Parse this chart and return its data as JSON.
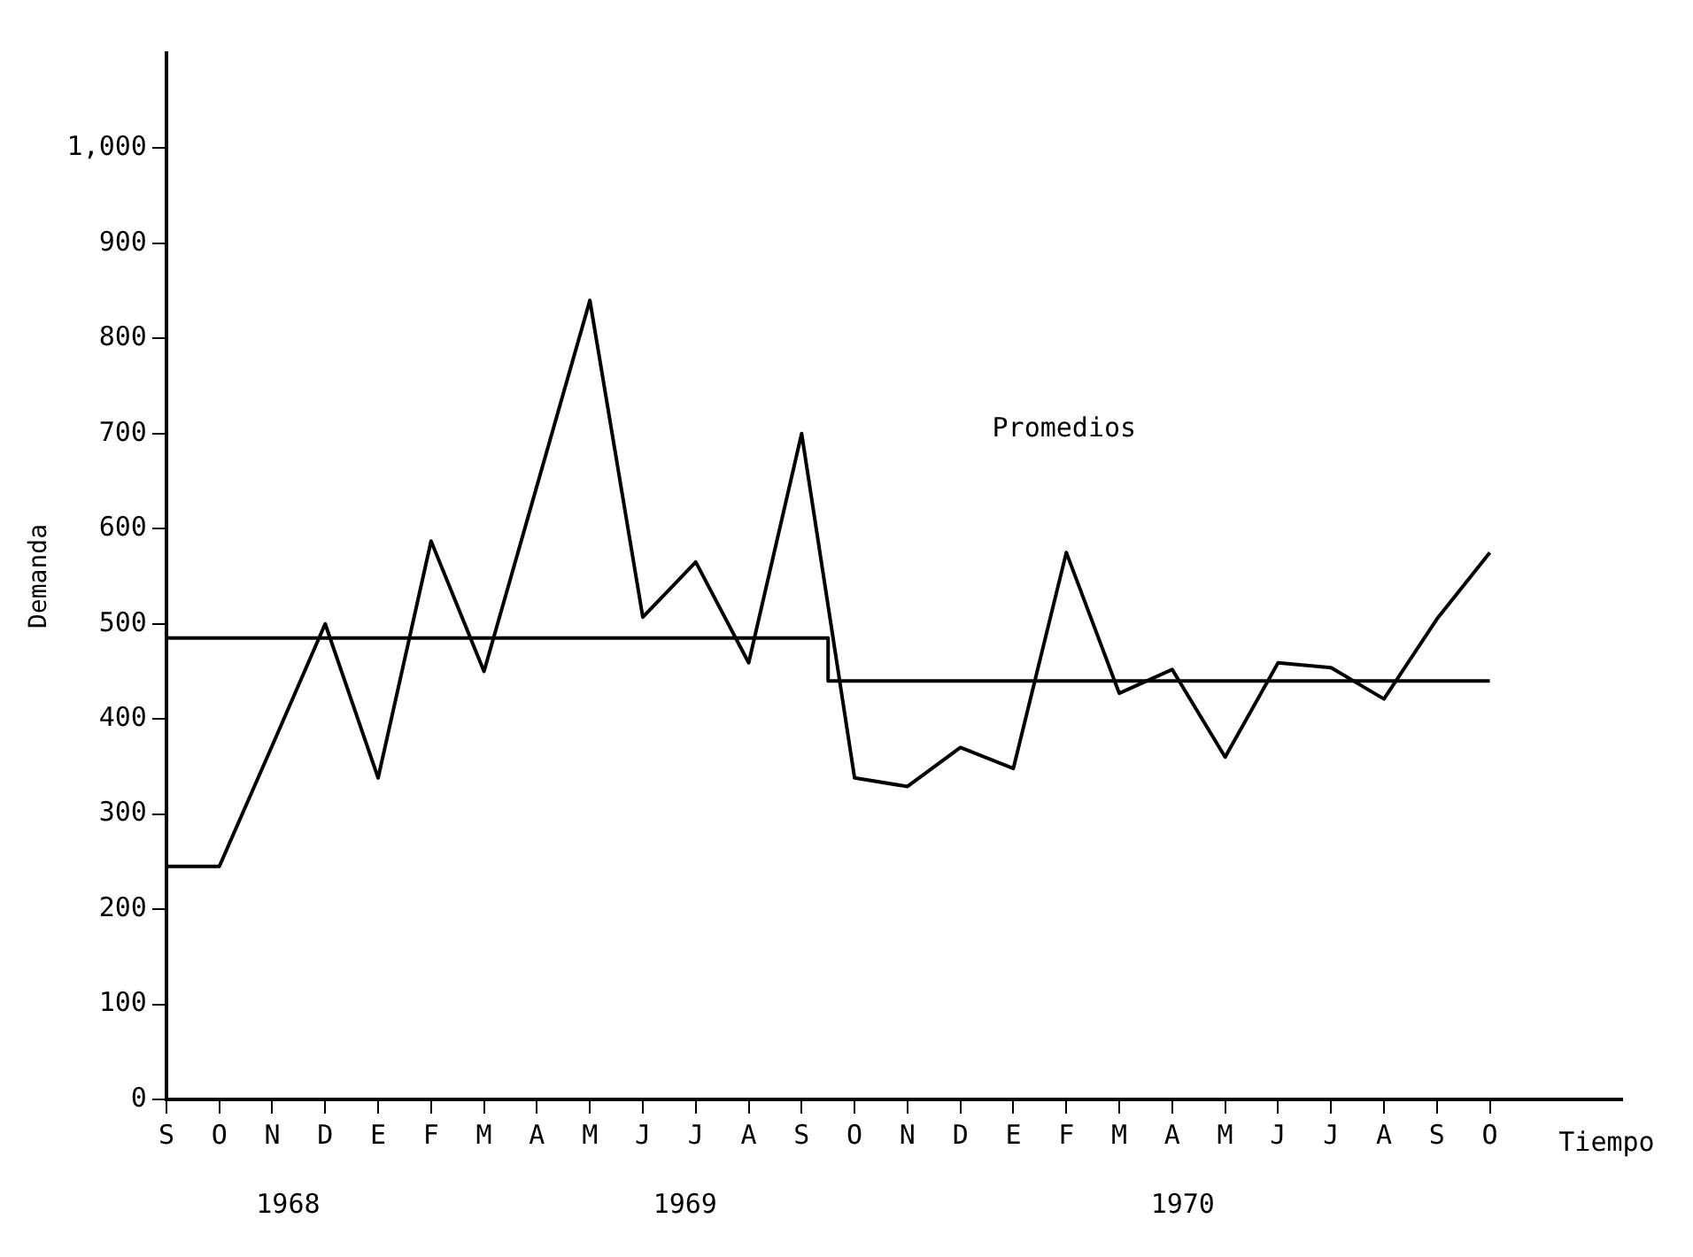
{
  "chart_data": {
    "type": "line",
    "xlabel": "Tiempo",
    "ylabel": "Demanda",
    "categories": [
      "S",
      "O",
      "N",
      "D",
      "E",
      "F",
      "M",
      "A",
      "M",
      "J",
      "J",
      "A",
      "S",
      "O",
      "N",
      "D",
      "E",
      "F",
      "M",
      "A",
      "M",
      "J",
      "J",
      "A",
      "S",
      "O"
    ],
    "series": [
      {
        "color": "#000000",
        "values": [
          245,
          245,
          372,
          500,
          338,
          587,
          450,
          645,
          840,
          507,
          565,
          459,
          700,
          338,
          329,
          370,
          348,
          575,
          427,
          452,
          360,
          459,
          454,
          421,
          505,
          575
        ]
      },
      {
        "type": "step",
        "color": "#000000",
        "values": [
          485,
          485,
          485,
          485,
          485,
          485,
          485,
          485,
          485,
          485,
          485,
          485,
          485,
          440,
          440,
          440,
          440,
          440,
          440,
          440,
          440,
          440,
          440,
          440,
          440,
          440
        ]
      }
    ],
    "ylim": [
      0,
      1100
    ],
    "yticks": [
      0,
      100,
      200,
      300,
      400,
      500,
      600,
      700,
      800,
      900,
      {
        "value": 1000,
        "label": "1,000"
      }
    ],
    "annotations": [
      "Promedios",
      "1968",
      "1969",
      "1970"
    ],
    "marker": "none",
    "legend": false
  }
}
